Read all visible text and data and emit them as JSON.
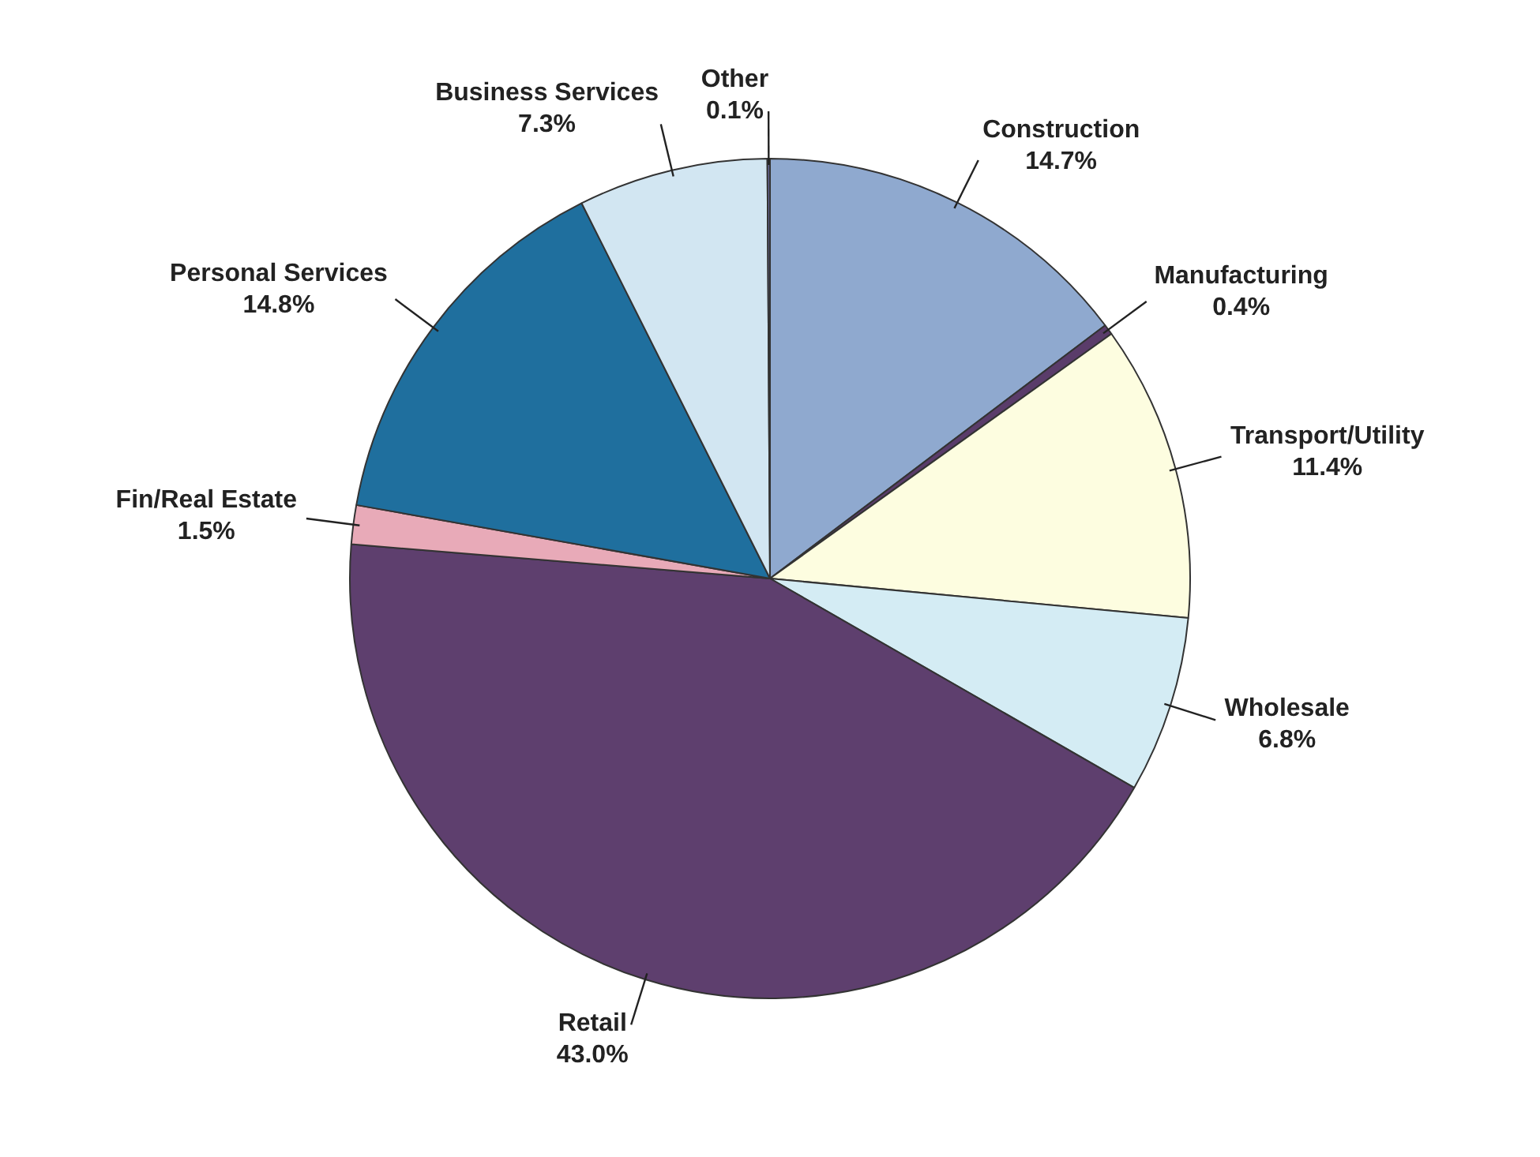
{
  "chart_data": {
    "type": "pie",
    "categories": [
      "Construction",
      "Manufacturing",
      "Transport/Utility",
      "Wholesale",
      "Retail",
      "Fin/Real Estate",
      "Personal Services",
      "Business Services",
      "Other"
    ],
    "values": [
      14.7,
      0.4,
      11.4,
      6.8,
      43.0,
      1.5,
      14.8,
      7.3,
      0.1
    ],
    "colors": [
      "#8fa9cf",
      "#5a3c6a",
      "#fdfde0",
      "#d4ecf4",
      "#5e3f6e",
      "#e8aab8",
      "#1f6f9e",
      "#d2e6f2",
      "#6a6aa0"
    ],
    "value_labels": [
      "14.7%",
      "0.4%",
      "11.4%",
      "6.8%",
      "43.0%",
      "1.5%",
      "14.8%",
      "7.3%",
      "0.1%"
    ],
    "legend": false
  }
}
